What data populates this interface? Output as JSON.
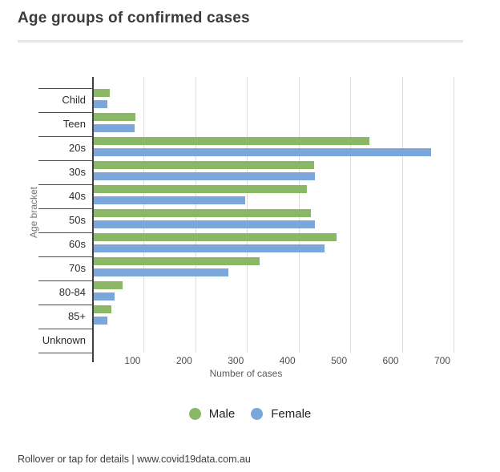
{
  "title": "Age groups of confirmed cases",
  "chart_data": {
    "type": "bar",
    "orientation": "horizontal",
    "title": "Age groups of confirmed cases",
    "xlabel": "Number of cases",
    "ylabel": "Age bracket",
    "categories": [
      "Child",
      "Teen",
      "20s",
      "30s",
      "40s",
      "50s",
      "60s",
      "70s",
      "80-84",
      "85+",
      "Unknown"
    ],
    "series": [
      {
        "name": "Male",
        "color": "#8ab866",
        "values": [
          33,
          82,
          535,
          429,
          415,
          422,
          471,
          322,
          58,
          35,
          0
        ]
      },
      {
        "name": "Female",
        "color": "#7aa6dc",
        "values": [
          28,
          81,
          655,
          430,
          295,
          430,
          449,
          262,
          42,
          28,
          0
        ]
      }
    ],
    "xlim": [
      0,
      737
    ],
    "xticks": [
      100,
      200,
      300,
      400,
      500,
      600,
      700
    ],
    "grid": true,
    "legend_position": "bottom"
  },
  "legend": {
    "items": [
      {
        "label": "Male",
        "color": "#8ab866"
      },
      {
        "label": "Female",
        "color": "#7aa6dc"
      }
    ]
  },
  "footer": {
    "text": "Rollover or tap for details | www.covid19data.com.au"
  },
  "colors": {
    "male": "#8ab866",
    "female": "#7aa6dc",
    "axis": "#3f3f3f",
    "gridline": "#dcdcdc",
    "title_text": "#3b3b3b"
  }
}
